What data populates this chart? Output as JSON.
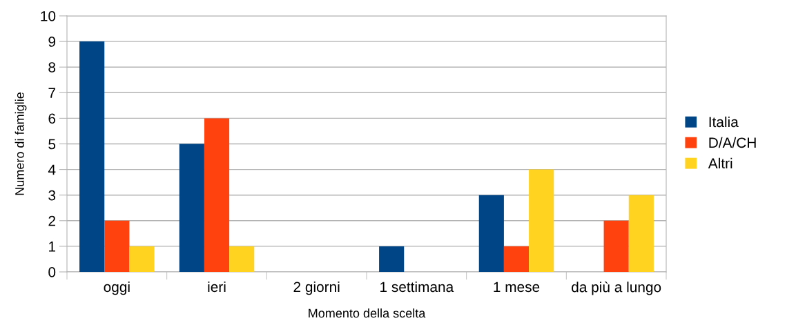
{
  "chart_data": {
    "type": "bar",
    "xlabel": "Momento della scelta",
    "ylabel": "Numero di famiglie",
    "categories": [
      "oggi",
      "ieri",
      "2 giorni",
      "1 settimana",
      "1 mese",
      "da più a lungo"
    ],
    "series": [
      {
        "name": "Italia",
        "color": "#004586",
        "values": [
          9,
          5,
          0,
          1,
          3,
          0
        ]
      },
      {
        "name": "D/A/CH",
        "color": "#ff420e",
        "values": [
          2,
          6,
          0,
          0,
          1,
          2
        ]
      },
      {
        "name": "Altri",
        "color": "#ffd320",
        "values": [
          1,
          1,
          0,
          0,
          4,
          3
        ]
      }
    ],
    "ylim": [
      0,
      10
    ],
    "yticks": [
      0,
      1,
      2,
      3,
      4,
      5,
      6,
      7,
      8,
      9,
      10
    ],
    "grid": "y",
    "legend": "right"
  }
}
